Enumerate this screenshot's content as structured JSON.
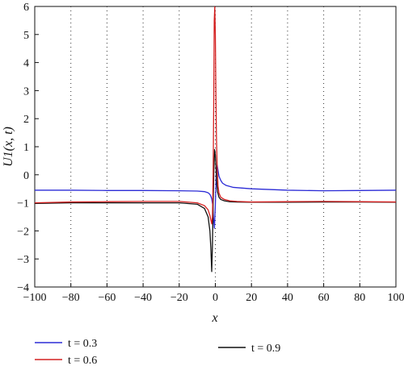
{
  "chart_data": {
    "type": "line",
    "xlabel": "x",
    "ylabel": "U1(x, t)",
    "xlim": [
      -100,
      100
    ],
    "ylim": [
      -4,
      6
    ],
    "xticks": [
      -100,
      -80,
      -60,
      -40,
      -20,
      0,
      20,
      40,
      60,
      80,
      100
    ],
    "yticks": [
      -4,
      -3,
      -2,
      -1,
      0,
      1,
      2,
      3,
      4,
      5,
      6
    ],
    "grid": "vertical dotted",
    "legend_position": "bottom",
    "series": [
      {
        "name": "t = 0.3",
        "color": "#2b2bd6",
        "x": [
          -100,
          -80,
          -60,
          -40,
          -20,
          -10,
          -6,
          -4,
          -3,
          -2.5,
          -2,
          -1.5,
          -1,
          -0.5,
          0,
          0.5,
          1,
          1.5,
          2,
          3,
          4,
          6,
          10,
          20,
          40,
          60,
          80,
          100
        ],
        "y": [
          -0.55,
          -0.55,
          -0.56,
          -0.56,
          -0.57,
          -0.58,
          -0.6,
          -0.64,
          -0.7,
          -0.76,
          -0.86,
          -1.05,
          -1.55,
          -1.9,
          -1.1,
          0.1,
          0.35,
          0.15,
          -0.05,
          -0.2,
          -0.3,
          -0.38,
          -0.45,
          -0.5,
          -0.55,
          -0.57,
          -0.56,
          -0.55
        ]
      },
      {
        "name": "t = 0.6",
        "color": "#d42020",
        "x": [
          -100,
          -80,
          -60,
          -40,
          -20,
          -10,
          -6,
          -4,
          -3,
          -2.5,
          -2,
          -1.6,
          -1.2,
          -0.9,
          -0.6,
          -0.3,
          0,
          0.3,
          0.6,
          1,
          1.5,
          2,
          3,
          5,
          8,
          12,
          20,
          40,
          60,
          80,
          100
        ],
        "y": [
          -1.0,
          -0.97,
          -0.96,
          -0.95,
          -0.95,
          -1.0,
          -1.1,
          -1.25,
          -1.45,
          -1.6,
          -1.75,
          -1.5,
          0.0,
          2.5,
          5.5,
          6.0,
          5.0,
          3.0,
          1.4,
          0.3,
          -0.4,
          -0.65,
          -0.8,
          -0.88,
          -0.93,
          -0.95,
          -0.97,
          -0.96,
          -0.95,
          -0.96,
          -0.97
        ]
      },
      {
        "name": "t = 0.9",
        "color": "#111111",
        "x": [
          -100,
          -80,
          -60,
          -40,
          -20,
          -10,
          -6,
          -4,
          -3,
          -2.5,
          -2,
          -1.6,
          -1.2,
          -0.8,
          -0.4,
          0,
          0.4,
          0.8,
          1.2,
          2,
          3,
          5,
          8,
          12,
          20,
          40,
          60,
          80,
          100
        ],
        "y": [
          -1.02,
          -1.0,
          -1.0,
          -1.0,
          -1.0,
          -1.05,
          -1.2,
          -1.5,
          -2.0,
          -2.6,
          -3.45,
          -2.5,
          -1.0,
          0.2,
          0.9,
          0.7,
          0.2,
          -0.3,
          -0.6,
          -0.8,
          -0.88,
          -0.93,
          -0.96,
          -0.97,
          -0.98,
          -0.98,
          -0.97,
          -0.97,
          -0.98
        ]
      }
    ]
  }
}
